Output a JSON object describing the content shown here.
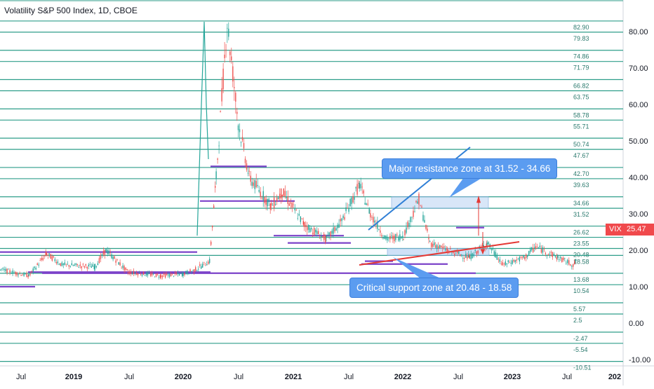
{
  "window": {
    "title": "Volatility S&P 500 Index, 1D, CBOE"
  },
  "price_tag": {
    "symbol": "VIX",
    "value": "25.47",
    "color": "#f0494c"
  },
  "annotations": {
    "resistance": "Major resistance zone at 31.52 - 34.66",
    "support": "Critical support zone at 20.48 - 18.58"
  },
  "colors": {
    "level_line": "#2e9e8a",
    "candle_up": "#26a69a",
    "candle_down": "#ef5350",
    "purple_level": "#7b43c9",
    "trend_up": "#2f7fd6",
    "trend_support": "#e53935",
    "callout_bg": "#5b9cf0",
    "zone_fill": "#a8c8f0"
  },
  "chart_data": {
    "type": "candlestick",
    "title": "Volatility S&P 500 Index, 1D, CBOE",
    "ylim": [
      -13.5,
      88
    ],
    "y_ticks": [
      "-10.00",
      "0.00",
      "10.00",
      "20.00",
      "30.00",
      "40.00",
      "50.00",
      "60.00",
      "70.00",
      "80.00"
    ],
    "x_ticks": [
      "Jul",
      "2019",
      "Jul",
      "2020",
      "Jul",
      "2021",
      "Jul",
      "2022",
      "Jul",
      "2023",
      "Jul",
      "202"
    ],
    "horizontal_levels": [
      "82.90",
      "79.83",
      "74.86",
      "71.79",
      "66.82",
      "63.75",
      "58.78",
      "55.71",
      "50.74",
      "47.67",
      "42.70",
      "39.63",
      "34.66",
      "31.52",
      "26.62",
      "23.55",
      "20.48",
      "18.58",
      "13.68",
      "10.54",
      "5.57",
      "2.5",
      "-2.47",
      "-5.54",
      "-10.51"
    ],
    "last_value": 25.47,
    "series_points": [
      [
        2018.3,
        14
      ],
      [
        2018.45,
        13
      ],
      [
        2018.55,
        12.5
      ],
      [
        2018.7,
        12
      ],
      [
        2018.76,
        13
      ],
      [
        2018.83,
        22
      ],
      [
        2018.9,
        18
      ],
      [
        2018.98,
        25
      ],
      [
        2019.02,
        19
      ],
      [
        2019.15,
        15
      ],
      [
        2019.3,
        13
      ],
      [
        2019.38,
        19
      ],
      [
        2019.45,
        16
      ],
      [
        2019.6,
        15.5
      ],
      [
        2019.65,
        20
      ],
      [
        2019.75,
        14
      ],
      [
        2019.9,
        13
      ],
      [
        2020.0,
        13.5
      ],
      [
        2020.05,
        14.5
      ],
      [
        2020.12,
        17
      ],
      [
        2020.15,
        40
      ],
      [
        2020.2,
        82.69
      ],
      [
        2020.25,
        55
      ],
      [
        2020.3,
        40
      ],
      [
        2020.4,
        32
      ],
      [
        2020.45,
        36
      ],
      [
        2020.55,
        27
      ],
      [
        2020.65,
        23
      ],
      [
        2020.72,
        28
      ],
      [
        2020.8,
        38
      ],
      [
        2020.85,
        30
      ],
      [
        2020.92,
        23
      ],
      [
        2021.0,
        24
      ],
      [
        2021.07,
        34
      ],
      [
        2021.12,
        22
      ],
      [
        2021.2,
        20
      ],
      [
        2021.3,
        18
      ],
      [
        2021.38,
        22
      ],
      [
        2021.45,
        16
      ],
      [
        2021.55,
        18
      ],
      [
        2021.6,
        21
      ],
      [
        2021.7,
        18
      ],
      [
        2021.77,
        16
      ],
      [
        2021.83,
        20
      ],
      [
        2021.9,
        30
      ],
      [
        2021.95,
        18
      ],
      [
        2022.0,
        17
      ],
      [
        2022.05,
        25
      ],
      [
        2022.15,
        32
      ],
      [
        2022.2,
        37
      ],
      [
        2022.26,
        34
      ],
      [
        2022.32,
        22
      ],
      [
        2022.4,
        32
      ],
      [
        2022.48,
        28
      ],
      [
        2022.52,
        33
      ],
      [
        2022.6,
        26
      ],
      [
        2022.66,
        21
      ],
      [
        2022.72,
        23
      ],
      [
        2022.75,
        27
      ],
      [
        2022.8,
        25.5
      ]
    ]
  }
}
